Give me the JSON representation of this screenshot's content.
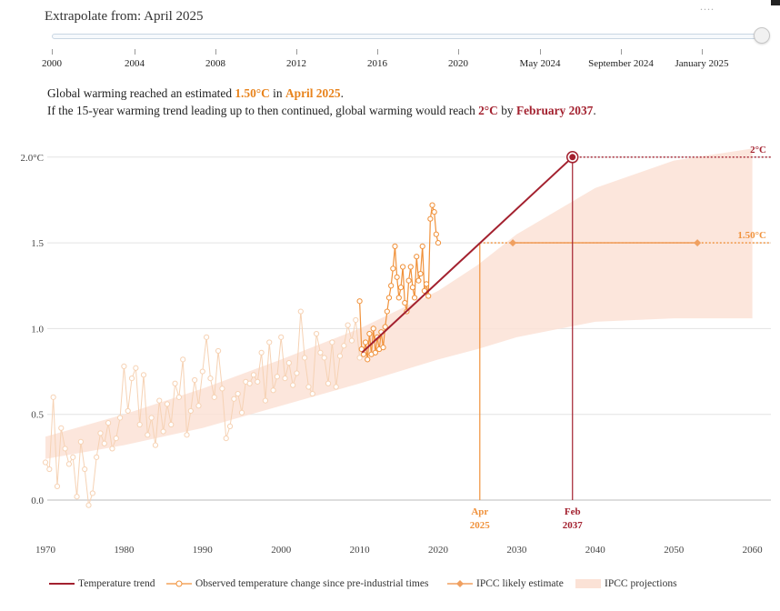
{
  "top_dots": "....",
  "slider": {
    "title": "Extrapolate from: April 2025",
    "tick_labels": [
      "2000",
      "2004",
      "2008",
      "2012",
      "2016",
      "2020",
      "May 2024",
      "September 2024",
      "January 2025"
    ]
  },
  "summary": {
    "line1_pre": "Global warming reached an estimated ",
    "line1_value": "1.50°C",
    "line1_mid": " in ",
    "line1_date": "April 2025",
    "line1_end": ".",
    "line2_pre": "If the 15-year warming trend leading up to then continued, global warming would reach ",
    "line2_value": "2°C",
    "line2_mid": " by ",
    "line2_date": "February 2037",
    "line2_end": "."
  },
  "colors": {
    "trend": "#a3212f",
    "observed": "#f0913a",
    "observed_faded": "#f6d2b4",
    "ipcc_band": "#fbe2d6",
    "grid": "#e3e3e3"
  },
  "chart_data": {
    "type": "line",
    "x_ticks": [
      "1970",
      "1980",
      "1990",
      "2000",
      "2010",
      "2020",
      "2030",
      "2040",
      "2050",
      "2060"
    ],
    "y_ticks": [
      "0.0",
      "0.5",
      "1.0",
      "1.5",
      "2.0°C"
    ],
    "xlim": [
      1970,
      2062
    ],
    "ylim": [
      -0.2,
      2.05
    ],
    "grid": true,
    "legend_position": "bottom",
    "series": [
      {
        "name": "Temperature trend",
        "x": [
          2010.3,
          2037.1
        ],
        "y": [
          0.86,
          2.0
        ]
      },
      {
        "name": "IPCC likely estimate",
        "x": [
          2029.5,
          2053.0
        ],
        "y": [
          1.5,
          1.5
        ]
      },
      {
        "name": "IPCC projections",
        "x": [
          1970,
          1980,
          1990,
          2000,
          2010,
          2020,
          2025,
          2030,
          2040,
          2050,
          2060
        ],
        "upper": [
          0.37,
          0.5,
          0.65,
          0.82,
          1.0,
          1.22,
          1.37,
          1.55,
          1.82,
          1.98,
          2.05
        ],
        "lower": [
          0.24,
          0.32,
          0.42,
          0.55,
          0.68,
          0.82,
          0.88,
          0.95,
          1.04,
          1.06,
          1.06
        ]
      },
      {
        "name": "Observed temperature change since pre-industrial times",
        "x_start": 1970,
        "x_step": 0.5,
        "y": [
          0.22,
          0.18,
          0.6,
          0.08,
          0.42,
          0.3,
          0.21,
          0.25,
          0.02,
          0.34,
          0.18,
          -0.03,
          0.04,
          0.25,
          0.39,
          0.33,
          0.45,
          0.3,
          0.36,
          0.48,
          0.78,
          0.52,
          0.71,
          0.77,
          0.44,
          0.73,
          0.38,
          0.48,
          0.32,
          0.58,
          0.4,
          0.56,
          0.44,
          0.68,
          0.6,
          0.82,
          0.38,
          0.52,
          0.7,
          0.55,
          0.75,
          0.95,
          0.71,
          0.6,
          0.87,
          0.65,
          0.36,
          0.43,
          0.59,
          0.62,
          0.51,
          0.69,
          0.68,
          0.73,
          0.69,
          0.86,
          0.58,
          0.92,
          0.64,
          0.72,
          0.95,
          0.71,
          0.8,
          0.67,
          0.74,
          1.1,
          0.83,
          0.66,
          0.62,
          0.97,
          0.86,
          0.83,
          0.68,
          0.92,
          0.66,
          0.84,
          0.9,
          1.02,
          0.93,
          1.05,
          0.83
        ],
        "highlight": {
          "x_start": 2010.0,
          "x_step": 0.25,
          "y": [
            1.16,
            0.88,
            0.85,
            0.92,
            0.82,
            0.97,
            0.85,
            1.0,
            0.86,
            0.95,
            0.88,
            0.98,
            0.89,
            1.01,
            1.1,
            1.18,
            1.25,
            1.35,
            1.48,
            1.3,
            1.18,
            1.24,
            1.36,
            1.15,
            1.1,
            1.28,
            1.36,
            1.24,
            1.18,
            1.42,
            1.28,
            1.32,
            1.48,
            1.22,
            1.26,
            1.19,
            1.64,
            1.72,
            1.68,
            1.55,
            1.5
          ]
        }
      }
    ],
    "annotations": {
      "label_2c": "2°C",
      "label_150": "1.50°C",
      "marker_2025_month": "Apr",
      "marker_2025_year": "2025",
      "marker_2037_month": "Feb",
      "marker_2037_year": "2037",
      "x_2025": 2025.3,
      "x_2037": 2037.1
    }
  },
  "legend": {
    "trend": "Temperature trend",
    "observed": "Observed temperature change since pre-industrial times",
    "ipcc_estimate": "IPCC likely estimate",
    "ipcc_projections": "IPCC projections"
  }
}
